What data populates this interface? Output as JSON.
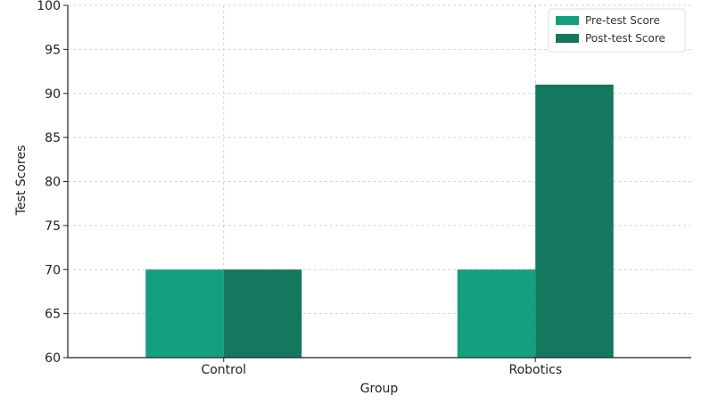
{
  "chart_data": {
    "type": "bar",
    "title": "",
    "xlabel": "Group",
    "ylabel": "Test Scores",
    "categories": [
      "Control",
      "Robotics"
    ],
    "series": [
      {
        "name": "Pre-test Score",
        "values": [
          70,
          70
        ],
        "color": "#13a07f"
      },
      {
        "name": "Post-test Score",
        "values": [
          70,
          91
        ],
        "color": "#16775f"
      }
    ],
    "ylim": [
      60,
      100
    ],
    "yticks": [
      60,
      65,
      70,
      75,
      80,
      85,
      90,
      95,
      100
    ],
    "grid": true,
    "legend_position": "top-right"
  }
}
